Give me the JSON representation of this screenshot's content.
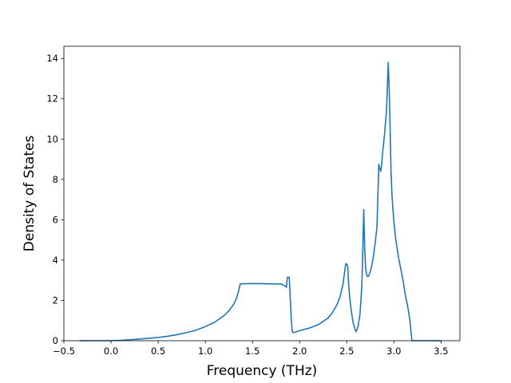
{
  "chart_data": {
    "type": "line",
    "title": "",
    "xlabel": "Frequency (THz)",
    "ylabel": "Density of States",
    "xlim": [
      -0.5,
      3.7
    ],
    "ylim": [
      0,
      14.6
    ],
    "xticks": [
      -0.5,
      0.0,
      0.5,
      1.0,
      1.5,
      2.0,
      2.5,
      3.0,
      3.5
    ],
    "xtick_labels": [
      "−0.5",
      "0.0",
      "0.5",
      "1.0",
      "1.5",
      "2.0",
      "2.5",
      "3.0",
      "3.5"
    ],
    "yticks": [
      0,
      2,
      4,
      6,
      8,
      10,
      12,
      14
    ],
    "ytick_labels": [
      "0",
      "2",
      "4",
      "6",
      "8",
      "10",
      "12",
      "14"
    ],
    "grid": false,
    "line_color": "#1f77b4",
    "series": [
      {
        "x": [
          -0.33,
          -0.2,
          -0.1,
          0.0,
          0.1,
          0.2,
          0.3,
          0.4,
          0.5,
          0.6,
          0.7,
          0.8,
          0.9,
          1.0,
          1.1,
          1.2,
          1.25,
          1.3,
          1.33,
          1.35,
          1.37,
          1.38,
          1.4,
          1.45,
          1.5,
          1.55,
          1.6,
          1.65,
          1.7,
          1.75,
          1.8,
          1.82,
          1.85,
          1.86,
          1.87,
          1.88,
          1.89,
          1.9,
          1.91,
          1.92,
          1.93,
          1.95,
          2.0,
          2.1,
          2.2,
          2.3,
          2.35,
          2.4,
          2.43,
          2.46,
          2.48,
          2.49,
          2.5,
          2.51,
          2.52,
          2.53,
          2.54,
          2.55,
          2.57,
          2.59,
          2.6,
          2.62,
          2.64,
          2.66,
          2.67,
          2.68,
          2.69,
          2.7,
          2.71,
          2.72,
          2.73,
          2.74,
          2.76,
          2.78,
          2.8,
          2.82,
          2.84,
          2.85,
          2.86,
          2.87,
          2.88,
          2.9,
          2.92,
          2.93,
          2.94,
          2.95,
          2.96,
          2.97,
          2.98,
          2.99,
          3.0,
          3.02,
          3.05,
          3.08,
          3.1,
          3.12,
          3.15,
          3.17,
          3.18,
          3.19,
          3.2,
          3.3,
          3.4,
          3.5
        ],
        "y": [
          0,
          0,
          0,
          0.005,
          0.02,
          0.05,
          0.08,
          0.12,
          0.16,
          0.22,
          0.3,
          0.4,
          0.52,
          0.7,
          0.92,
          1.25,
          1.48,
          1.8,
          2.1,
          2.4,
          2.82,
          2.82,
          2.82,
          2.83,
          2.83,
          2.83,
          2.83,
          2.82,
          2.82,
          2.81,
          2.82,
          2.78,
          2.7,
          2.65,
          3.15,
          3.15,
          3.15,
          2.2,
          1.2,
          0.55,
          0.4,
          0.42,
          0.5,
          0.62,
          0.8,
          1.12,
          1.4,
          1.82,
          2.2,
          2.8,
          3.5,
          3.82,
          3.8,
          3.7,
          2.8,
          2.2,
          1.8,
          1.4,
          0.85,
          0.55,
          0.45,
          0.7,
          1.3,
          2.7,
          4.5,
          6.5,
          4.6,
          3.6,
          3.3,
          3.18,
          3.2,
          3.3,
          3.6,
          4.1,
          4.8,
          5.6,
          8.75,
          8.55,
          8.4,
          8.7,
          9.3,
          10.2,
          11.3,
          12.5,
          13.8,
          12.5,
          10.5,
          8.3,
          7.2,
          6.5,
          5.9,
          5.0,
          4.1,
          3.4,
          2.9,
          2.3,
          1.6,
          1.0,
          0.5,
          0.05,
          0,
          0,
          0,
          0
        ]
      }
    ]
  }
}
